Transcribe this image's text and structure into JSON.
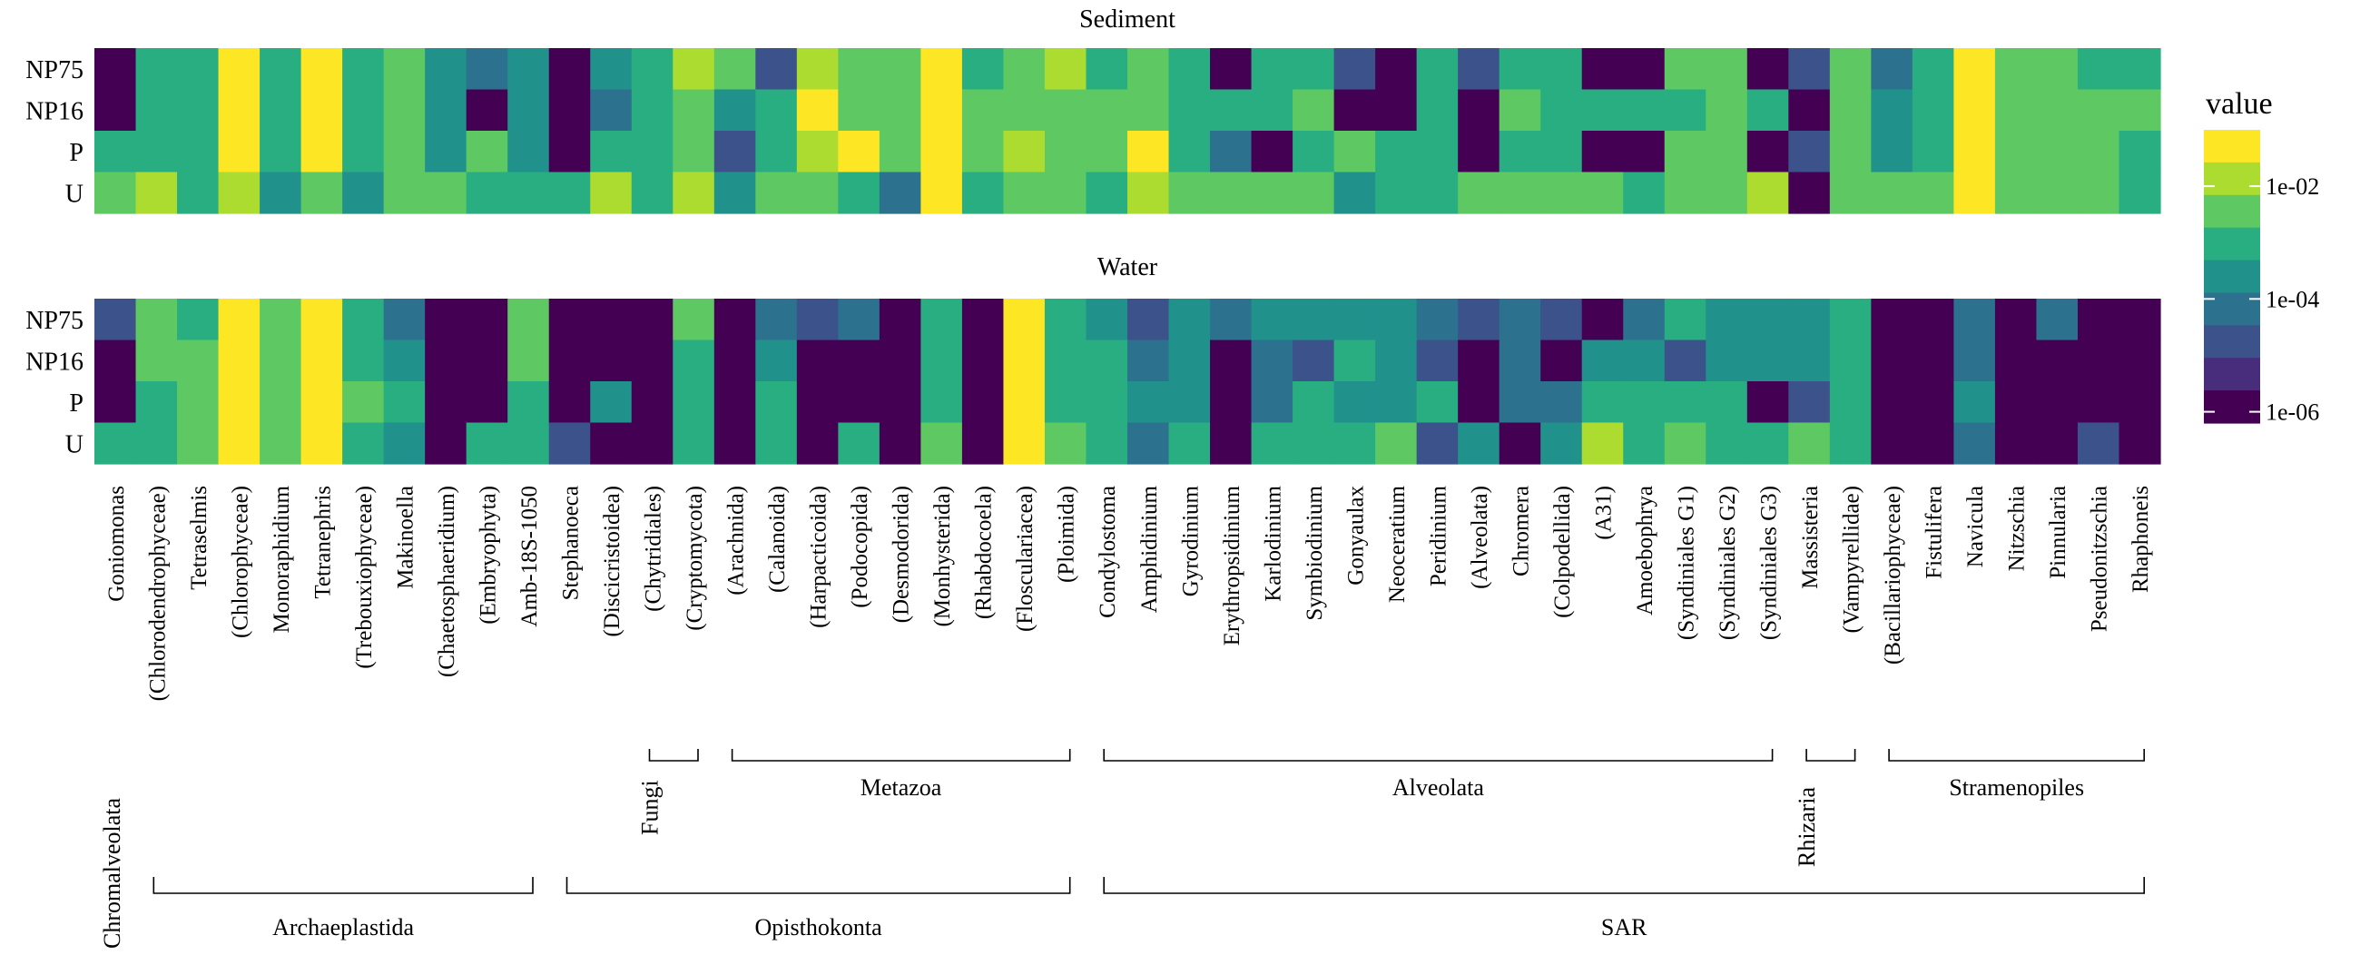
{
  "chart_data": {
    "type": "heatmap",
    "legend": {
      "title": "value",
      "tick_labels": [
        "1e-02",
        "1e-04",
        "1e-06"
      ],
      "tick_exponents": [
        -2,
        -4,
        -6
      ],
      "log_range": [
        -6.2,
        -1.0
      ],
      "palette": [
        "#440154",
        "#472d7b",
        "#3b528b",
        "#2c728e",
        "#21918c",
        "#28ae80",
        "#5ec962",
        "#addc30",
        "#fde725"
      ]
    },
    "rows": [
      "NP75",
      "NP16",
      "P",
      "U"
    ],
    "columns": [
      "Goniomonas",
      "(Chlorodendrophyceae)",
      "Tetraselmis",
      "(Chlorophyceae)",
      "Monoraphidium",
      "Tetranephris",
      "(Trebouxiophyceae)",
      "Makinoella",
      "(Chaetosphaeridium)",
      "(Embryophyta)",
      "Amb-18S-1050",
      "Stephanoeca",
      "(Discicristoidea)",
      "(Chytridiales)",
      "(Cryptomycota)",
      "(Arachnida)",
      "(Calanoida)",
      "(Harpacticoida)",
      "(Podocopida)",
      "(Desmodorida)",
      "(Monhysterida)",
      "(Rhabdocoela)",
      "(Flosculariacea)",
      "(Ploimida)",
      "Condylostoma",
      "Amphidinium",
      "Gyrodinium",
      "Erythropsidinium",
      "Karlodinium",
      "Symbiodinium",
      "Gonyaulax",
      "Neoceratium",
      "Peridinium",
      "(Alveolata)",
      "Chromera",
      "(Colpodellida)",
      "(A31)",
      "Amoebophrya",
      "(Syndiniales G1)",
      "(Syndiniales G2)",
      "(Syndiniales G3)",
      "Massisteria",
      "(Vampyrellidae)",
      "(Bacillariophyceae)",
      "Fistulifera",
      "Navicula",
      "Nitzschia",
      "Pinnularia",
      "Pseudonitzschia",
      "Rhaphoneis"
    ],
    "panels": [
      {
        "title": "Sediment",
        "log10_values": [
          [
            -6.2,
            -3.0,
            -3.0,
            -1.5,
            -3.0,
            -1.5,
            -3.0,
            -2.5,
            -3.8,
            -4.2,
            -3.5,
            -6.2,
            -3.5,
            -3.0,
            -2.0,
            -2.5,
            -4.8,
            -1.8,
            -2.3,
            -2.5,
            -1.0,
            -3.0,
            -2.2,
            -2.0,
            -2.8,
            -2.2,
            -3.0,
            -6.2,
            -3.0,
            -3.0,
            -4.5,
            -6.2,
            -2.8,
            -4.8,
            -2.8,
            -2.8,
            -6.2,
            -6.2,
            -2.3,
            -2.3,
            -6.2,
            -4.8,
            -2.3,
            -4.2,
            -3.2,
            -1.0,
            -2.5,
            -2.2,
            -2.8,
            -3.2
          ],
          [
            -6.2,
            -2.8,
            -3.0,
            -1.5,
            -3.0,
            -1.5,
            -3.0,
            -2.5,
            -3.8,
            -6.2,
            -3.5,
            -6.2,
            -4.0,
            -3.0,
            -2.5,
            -3.5,
            -2.8,
            -1.5,
            -2.3,
            -2.5,
            -1.0,
            -2.5,
            -2.2,
            -2.3,
            -2.5,
            -2.5,
            -3.2,
            -3.2,
            -3.0,
            -2.5,
            -6.2,
            -6.2,
            -3.2,
            -6.2,
            -2.5,
            -3.2,
            -2.8,
            -2.8,
            -3.0,
            -2.5,
            -3.0,
            -6.2,
            -2.5,
            -3.5,
            -3.0,
            -1.0,
            -2.5,
            -2.5,
            -2.3,
            -2.5
          ],
          [
            -2.8,
            -3.2,
            -3.0,
            -1.5,
            -3.0,
            -1.5,
            -3.0,
            -2.5,
            -3.8,
            -2.2,
            -3.5,
            -6.2,
            -2.8,
            -2.8,
            -2.5,
            -4.5,
            -2.8,
            -1.8,
            -1.2,
            -2.5,
            -1.0,
            -2.3,
            -2.0,
            -2.3,
            -2.3,
            -1.5,
            -3.0,
            -4.0,
            -6.2,
            -2.8,
            -2.5,
            -3.2,
            -3.0,
            -6.2,
            -3.0,
            -3.0,
            -6.2,
            -6.2,
            -2.5,
            -2.5,
            -6.2,
            -5.0,
            -2.5,
            -3.8,
            -2.8,
            -1.0,
            -2.2,
            -2.2,
            -2.5,
            -2.8
          ],
          [
            -2.2,
            -2.0,
            -2.8,
            -1.8,
            -3.5,
            -2.2,
            -3.5,
            -2.5,
            -2.2,
            -3.0,
            -3.0,
            -3.0,
            -1.8,
            -3.0,
            -1.8,
            -3.8,
            -2.5,
            -2.5,
            -3.2,
            -4.0,
            -1.3,
            -2.8,
            -2.5,
            -2.3,
            -3.0,
            -2.0,
            -2.5,
            -2.5,
            -2.3,
            -2.3,
            -3.8,
            -2.8,
            -2.8,
            -2.5,
            -2.3,
            -2.3,
            -2.5,
            -2.8,
            -2.3,
            -2.3,
            -2.0,
            -6.2,
            -2.3,
            -2.2,
            -2.3,
            -1.0,
            -2.2,
            -2.2,
            -2.3,
            -2.8
          ]
        ]
      },
      {
        "title": "Water",
        "log10_values": [
          [
            -4.5,
            -2.5,
            -2.8,
            -1.0,
            -2.5,
            -1.0,
            -3.2,
            -4.2,
            -6.2,
            -6.2,
            -2.5,
            -6.2,
            -6.2,
            -6.2,
            -2.5,
            -6.2,
            -4.0,
            -4.8,
            -4.2,
            -6.2,
            -3.0,
            -6.2,
            -1.3,
            -2.8,
            -3.8,
            -4.8,
            -3.8,
            -4.2,
            -3.5,
            -3.5,
            -3.8,
            -3.8,
            -4.0,
            -4.5,
            -4.0,
            -4.5,
            -6.2,
            -4.2,
            -3.0,
            -3.5,
            -3.5,
            -3.8,
            -2.8,
            -6.2,
            -6.2,
            -4.2,
            -6.2,
            -4.2,
            -6.2,
            -6.2
          ],
          [
            -6.2,
            -2.2,
            -2.5,
            -1.0,
            -2.5,
            -1.0,
            -3.0,
            -3.5,
            -6.2,
            -6.2,
            -2.5,
            -6.2,
            -6.2,
            -6.2,
            -3.2,
            -6.2,
            -3.8,
            -6.2,
            -6.2,
            -6.2,
            -3.0,
            -6.2,
            -1.3,
            -2.8,
            -2.8,
            -4.0,
            -3.5,
            -6.2,
            -4.2,
            -4.5,
            -3.2,
            -3.8,
            -4.5,
            -6.2,
            -4.0,
            -6.2,
            -3.8,
            -3.8,
            -4.5,
            -3.8,
            -3.8,
            -3.8,
            -2.8,
            -6.2,
            -6.2,
            -4.2,
            -6.2,
            -6.2,
            -6.2,
            -6.2
          ],
          [
            -6.2,
            -2.8,
            -2.5,
            -1.0,
            -2.5,
            -1.0,
            -2.5,
            -3.2,
            -6.2,
            -6.2,
            -2.8,
            -6.2,
            -3.5,
            -6.2,
            -2.8,
            -6.2,
            -2.8,
            -6.2,
            -6.2,
            -6.2,
            -2.8,
            -6.2,
            -1.3,
            -2.8,
            -2.8,
            -3.8,
            -3.5,
            -6.2,
            -4.2,
            -3.2,
            -3.5,
            -3.5,
            -3.2,
            -6.2,
            -4.0,
            -4.2,
            -2.8,
            -3.0,
            -3.0,
            -3.0,
            -6.2,
            -4.5,
            -2.8,
            -6.2,
            -6.2,
            -3.8,
            -6.2,
            -6.2,
            -6.2,
            -6.2
          ],
          [
            -3.2,
            -2.8,
            -2.5,
            -1.2,
            -2.5,
            -1.2,
            -2.8,
            -3.8,
            -6.2,
            -3.0,
            -2.8,
            -4.8,
            -6.2,
            -6.2,
            -2.8,
            -6.2,
            -2.8,
            -6.2,
            -3.2,
            -6.2,
            -2.5,
            -6.2,
            -1.0,
            -2.2,
            -2.8,
            -4.0,
            -2.8,
            -6.2,
            -3.2,
            -2.8,
            -2.8,
            -2.5,
            -4.5,
            -3.5,
            -6.2,
            -3.5,
            -2.0,
            -2.8,
            -2.5,
            -2.8,
            -2.8,
            -2.5,
            -2.8,
            -6.2,
            -6.2,
            -4.0,
            -6.2,
            -6.2,
            -4.5,
            -6.2
          ]
        ]
      }
    ],
    "groups": [
      {
        "label": "Chromalveolata",
        "level": 1,
        "from": 0,
        "to": 0
      },
      {
        "label": "Fungi",
        "level": 1,
        "from": 13,
        "to": 14
      },
      {
        "label": "Metazoa",
        "level": 1,
        "from": 15,
        "to": 23
      },
      {
        "label": "Alveolata",
        "level": 1,
        "from": 24,
        "to": 40
      },
      {
        "label": "Rhizaria",
        "level": 1,
        "from": 41,
        "to": 42
      },
      {
        "label": "Stramenopiles",
        "level": 1,
        "from": 43,
        "to": 49
      },
      {
        "label": "Archaeplastida",
        "level": 2,
        "from": 1,
        "to": 10
      },
      {
        "label": "Opisthokonta",
        "level": 2,
        "from": 11,
        "to": 23
      },
      {
        "label": "SAR",
        "level": 2,
        "from": 24,
        "to": 49
      }
    ]
  }
}
